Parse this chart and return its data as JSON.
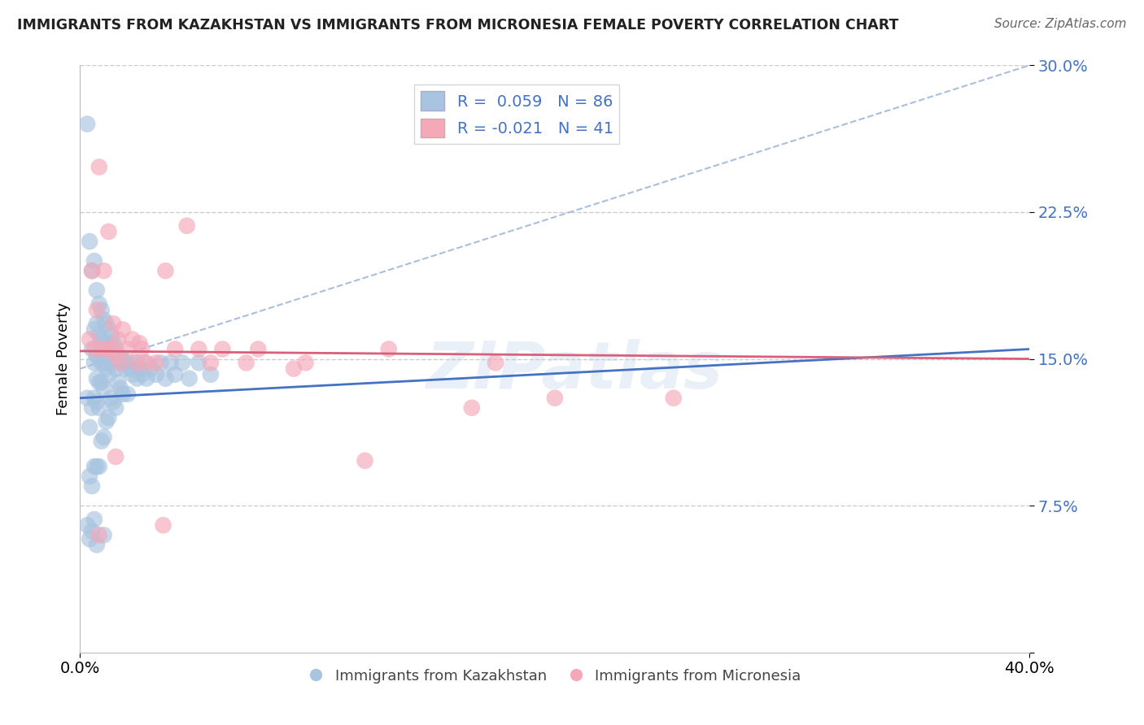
{
  "title": "IMMIGRANTS FROM KAZAKHSTAN VS IMMIGRANTS FROM MICRONESIA FEMALE POVERTY CORRELATION CHART",
  "source": "Source: ZipAtlas.com",
  "ylabel": "Female Poverty",
  "xlim": [
    0.0,
    0.4
  ],
  "ylim": [
    0.0,
    0.3
  ],
  "legend_label_kaz": "Immigrants from Kazakhstan",
  "legend_label_mic": "Immigrants from Micronesia",
  "kaz_color": "#a8c4e0",
  "mic_color": "#f4a8b8",
  "kaz_line_color": "#4472c4",
  "mic_line_color": "#d9607a",
  "dash_line_color": "#a0b8d8",
  "background_color": "#ffffff",
  "kaz_R": 0.059,
  "kaz_N": 86,
  "mic_R": -0.021,
  "mic_N": 41,
  "kaz_x": [
    0.003,
    0.003,
    0.004,
    0.004,
    0.004,
    0.005,
    0.005,
    0.005,
    0.005,
    0.006,
    0.006,
    0.006,
    0.006,
    0.006,
    0.007,
    0.007,
    0.007,
    0.007,
    0.007,
    0.007,
    0.008,
    0.008,
    0.008,
    0.008,
    0.008,
    0.008,
    0.009,
    0.009,
    0.009,
    0.009,
    0.009,
    0.01,
    0.01,
    0.01,
    0.01,
    0.01,
    0.011,
    0.011,
    0.011,
    0.011,
    0.012,
    0.012,
    0.012,
    0.012,
    0.013,
    0.013,
    0.013,
    0.014,
    0.014,
    0.014,
    0.015,
    0.015,
    0.015,
    0.016,
    0.016,
    0.017,
    0.017,
    0.018,
    0.018,
    0.019,
    0.02,
    0.02,
    0.021,
    0.022,
    0.023,
    0.024,
    0.025,
    0.026,
    0.027,
    0.028,
    0.03,
    0.032,
    0.034,
    0.036,
    0.038,
    0.04,
    0.043,
    0.046,
    0.05,
    0.055,
    0.003,
    0.004,
    0.005,
    0.007,
    0.006,
    0.01
  ],
  "kaz_y": [
    0.27,
    0.13,
    0.21,
    0.115,
    0.09,
    0.195,
    0.155,
    0.125,
    0.085,
    0.2,
    0.165,
    0.148,
    0.13,
    0.095,
    0.185,
    0.168,
    0.152,
    0.14,
    0.128,
    0.095,
    0.178,
    0.162,
    0.15,
    0.138,
    0.125,
    0.095,
    0.175,
    0.16,
    0.148,
    0.138,
    0.108,
    0.17,
    0.158,
    0.148,
    0.135,
    0.11,
    0.168,
    0.155,
    0.145,
    0.118,
    0.165,
    0.152,
    0.142,
    0.12,
    0.162,
    0.15,
    0.13,
    0.158,
    0.148,
    0.128,
    0.155,
    0.145,
    0.125,
    0.152,
    0.138,
    0.15,
    0.135,
    0.148,
    0.132,
    0.145,
    0.148,
    0.132,
    0.145,
    0.142,
    0.148,
    0.14,
    0.145,
    0.142,
    0.148,
    0.14,
    0.145,
    0.142,
    0.148,
    0.14,
    0.148,
    0.142,
    0.148,
    0.14,
    0.148,
    0.142,
    0.065,
    0.058,
    0.062,
    0.055,
    0.068,
    0.06
  ],
  "mic_x": [
    0.004,
    0.005,
    0.006,
    0.007,
    0.008,
    0.009,
    0.01,
    0.011,
    0.012,
    0.013,
    0.014,
    0.015,
    0.016,
    0.017,
    0.018,
    0.02,
    0.022,
    0.024,
    0.026,
    0.028,
    0.032,
    0.036,
    0.04,
    0.045,
    0.05,
    0.06,
    0.07,
    0.09,
    0.12,
    0.165,
    0.2,
    0.008,
    0.015,
    0.025,
    0.035,
    0.055,
    0.075,
    0.095,
    0.13,
    0.175,
    0.25
  ],
  "mic_y": [
    0.16,
    0.195,
    0.155,
    0.175,
    0.248,
    0.155,
    0.195,
    0.155,
    0.215,
    0.155,
    0.168,
    0.152,
    0.16,
    0.148,
    0.165,
    0.155,
    0.16,
    0.148,
    0.155,
    0.148,
    0.148,
    0.195,
    0.155,
    0.218,
    0.155,
    0.155,
    0.148,
    0.145,
    0.098,
    0.125,
    0.13,
    0.06,
    0.1,
    0.158,
    0.065,
    0.148,
    0.155,
    0.148,
    0.155,
    0.148,
    0.13
  ]
}
